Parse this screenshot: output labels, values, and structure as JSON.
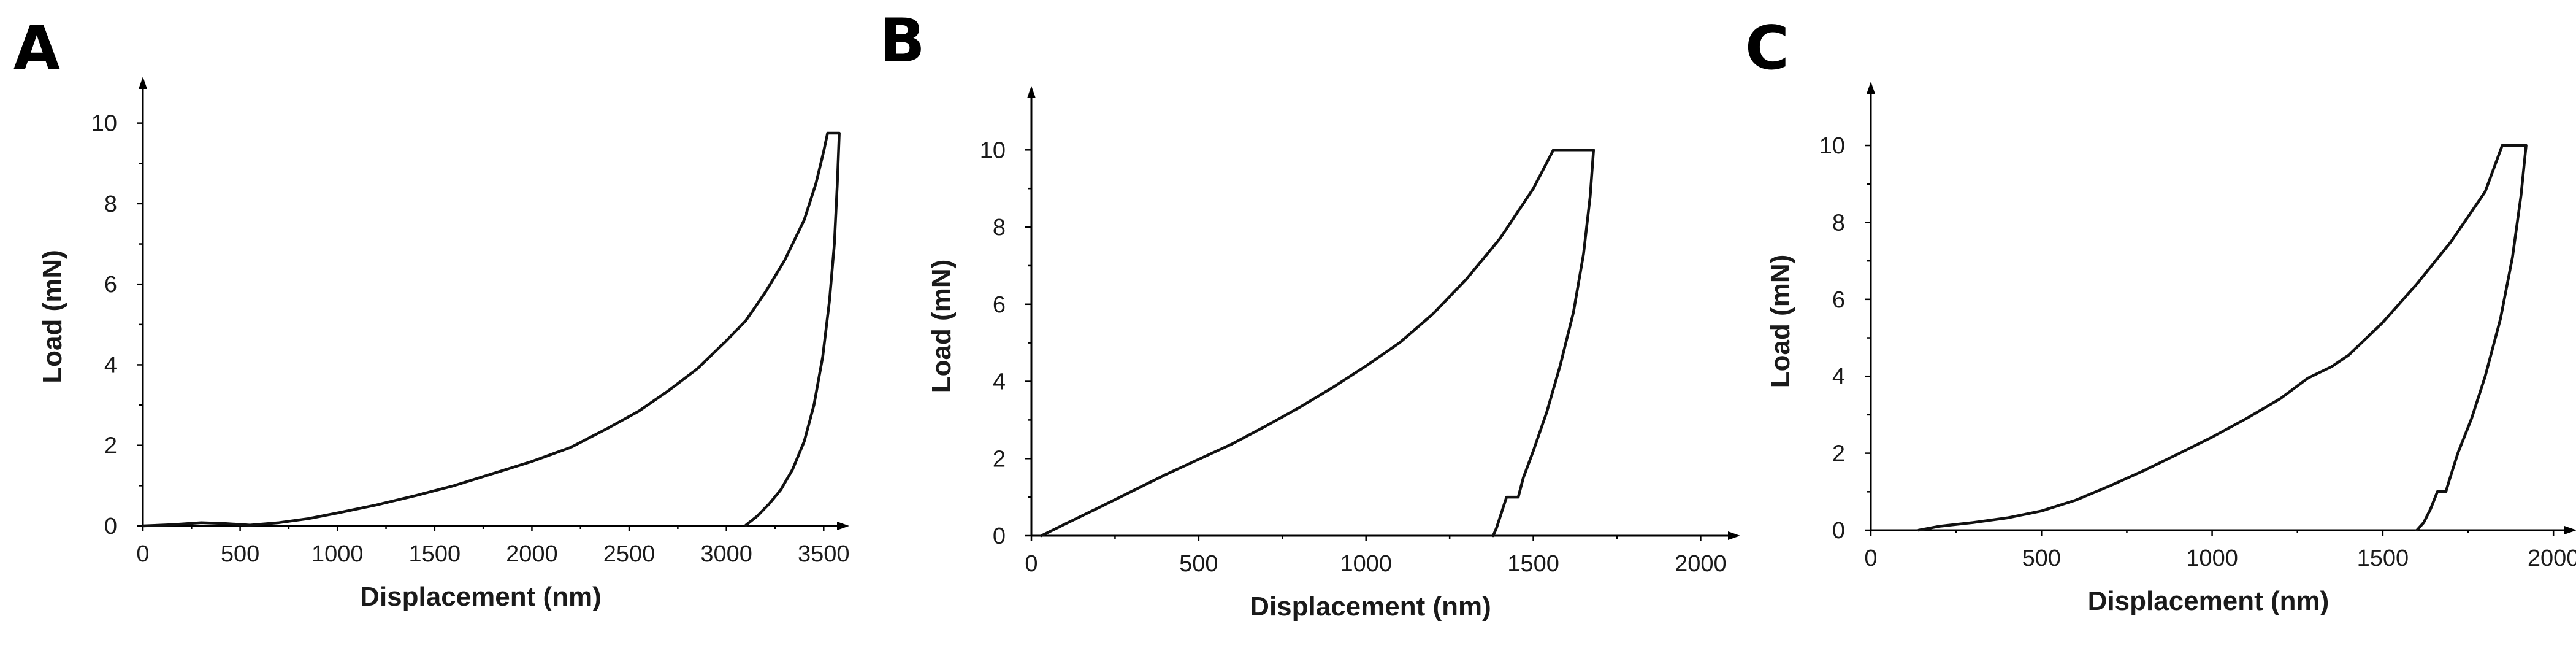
{
  "chart_data": [
    {
      "panel": "A",
      "type": "line",
      "xlabel": "Displacement (nm)",
      "ylabel": "Load (mN)",
      "xlim": [
        0,
        3600
      ],
      "ylim": [
        0,
        11
      ],
      "xticks": [
        0,
        500,
        1000,
        1500,
        2000,
        2500,
        3000,
        3500
      ],
      "yticks": [
        0,
        2,
        4,
        6,
        8,
        10
      ],
      "grid": false,
      "series": [
        {
          "values": [
            [
              0,
              0
            ],
            [
              150,
              0.03
            ],
            [
              300,
              0.08
            ],
            [
              420,
              0.06
            ],
            [
              550,
              0.02
            ],
            [
              700,
              0.08
            ],
            [
              850,
              0.18
            ],
            [
              1000,
              0.32
            ],
            [
              1200,
              0.52
            ],
            [
              1400,
              0.75
            ],
            [
              1600,
              1.0
            ],
            [
              1800,
              1.3
            ],
            [
              2000,
              1.6
            ],
            [
              2200,
              1.95
            ],
            [
              2400,
              2.45
            ],
            [
              2550,
              2.85
            ],
            [
              2700,
              3.35
            ],
            [
              2850,
              3.9
            ],
            [
              3000,
              4.6
            ],
            [
              3100,
              5.1
            ],
            [
              3200,
              5.8
            ],
            [
              3300,
              6.6
            ],
            [
              3400,
              7.6
            ],
            [
              3460,
              8.5
            ],
            [
              3500,
              9.3
            ],
            [
              3520,
              9.75
            ],
            [
              3580,
              9.75
            ],
            [
              3570,
              8.5
            ],
            [
              3555,
              7.0
            ],
            [
              3530,
              5.6
            ],
            [
              3495,
              4.2
            ],
            [
              3450,
              3.0
            ],
            [
              3400,
              2.1
            ],
            [
              3340,
              1.4
            ],
            [
              3280,
              0.9
            ],
            [
              3220,
              0.55
            ],
            [
              3160,
              0.25
            ],
            [
              3100,
              0.02
            ]
          ]
        }
      ]
    },
    {
      "panel": "B",
      "type": "line",
      "xlabel": "Displacement (nm)",
      "ylabel": "Load (mN)",
      "xlim": [
        0,
        2100
      ],
      "ylim": [
        0,
        11.5
      ],
      "xticks": [
        0,
        500,
        1000,
        1500,
        2000
      ],
      "yticks": [
        0,
        2,
        4,
        6,
        8,
        10
      ],
      "grid": false,
      "series": [
        {
          "values": [
            [
              30,
              0
            ],
            [
              100,
              0.3
            ],
            [
              200,
              0.72
            ],
            [
              300,
              1.15
            ],
            [
              400,
              1.58
            ],
            [
              500,
              1.98
            ],
            [
              600,
              2.38
            ],
            [
              700,
              2.84
            ],
            [
              800,
              3.32
            ],
            [
              900,
              3.84
            ],
            [
              1000,
              4.4
            ],
            [
              1100,
              5.0
            ],
            [
              1200,
              5.75
            ],
            [
              1300,
              6.65
            ],
            [
              1400,
              7.7
            ],
            [
              1500,
              9.0
            ],
            [
              1560,
              10.0
            ],
            [
              1680,
              10.0
            ],
            [
              1670,
              8.8
            ],
            [
              1650,
              7.3
            ],
            [
              1620,
              5.8
            ],
            [
              1580,
              4.4
            ],
            [
              1540,
              3.2
            ],
            [
              1500,
              2.2
            ],
            [
              1470,
              1.5
            ],
            [
              1455,
              1.0
            ],
            [
              1420,
              1.0
            ],
            [
              1405,
              0.6
            ],
            [
              1390,
              0.2
            ],
            [
              1380,
              0
            ]
          ]
        }
      ]
    },
    {
      "panel": "C",
      "type": "line",
      "xlabel": "Displacement (nm)",
      "ylabel": "Load (mN)",
      "xlim": [
        0,
        2050
      ],
      "ylim": [
        0,
        11.5
      ],
      "xticks": [
        0,
        500,
        1000,
        1500,
        2000
      ],
      "yticks": [
        0,
        2,
        4,
        6,
        8,
        10
      ],
      "grid": false,
      "series": [
        {
          "values": [
            [
              140,
              0
            ],
            [
              200,
              0.1
            ],
            [
              300,
              0.2
            ],
            [
              400,
              0.32
            ],
            [
              500,
              0.5
            ],
            [
              600,
              0.78
            ],
            [
              700,
              1.15
            ],
            [
              800,
              1.55
            ],
            [
              900,
              1.98
            ],
            [
              1000,
              2.42
            ],
            [
              1100,
              2.9
            ],
            [
              1200,
              3.42
            ],
            [
              1280,
              3.95
            ],
            [
              1350,
              4.25
            ],
            [
              1400,
              4.55
            ],
            [
              1500,
              5.4
            ],
            [
              1600,
              6.4
            ],
            [
              1700,
              7.5
            ],
            [
              1800,
              8.8
            ],
            [
              1850,
              10.0
            ],
            [
              1920,
              10.0
            ],
            [
              1905,
              8.7
            ],
            [
              1880,
              7.1
            ],
            [
              1845,
              5.5
            ],
            [
              1800,
              4.0
            ],
            [
              1760,
              2.9
            ],
            [
              1720,
              2.0
            ],
            [
              1695,
              1.3
            ],
            [
              1685,
              1.0
            ],
            [
              1660,
              1.0
            ],
            [
              1640,
              0.55
            ],
            [
              1620,
              0.2
            ],
            [
              1600,
              0
            ]
          ]
        }
      ]
    }
  ]
}
